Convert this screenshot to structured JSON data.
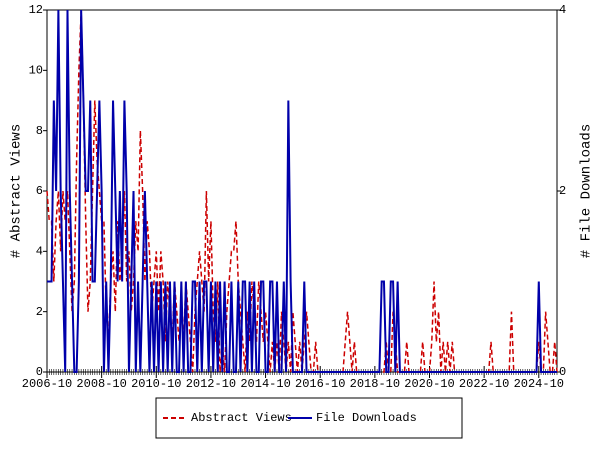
{
  "chart_data": {
    "type": "line",
    "x": [
      "2006-10",
      "2006-11",
      "2006-12",
      "2007-01",
      "2007-02",
      "2007-03",
      "2007-04",
      "2007-05",
      "2007-06",
      "2007-07",
      "2007-08",
      "2007-09",
      "2007-10",
      "2007-11",
      "2007-12",
      "2008-01",
      "2008-02",
      "2008-03",
      "2008-04",
      "2008-05",
      "2008-06",
      "2008-07",
      "2008-08",
      "2008-09",
      "2008-10",
      "2008-11",
      "2008-12",
      "2009-01",
      "2009-02",
      "2009-03",
      "2009-04",
      "2009-05",
      "2009-06",
      "2009-07",
      "2009-08",
      "2009-09",
      "2009-10",
      "2009-11",
      "2009-12",
      "2010-01",
      "2010-02",
      "2010-03",
      "2010-04",
      "2010-05",
      "2010-06",
      "2010-07",
      "2010-08",
      "2010-09",
      "2010-10",
      "2010-11",
      "2010-12",
      "2011-01",
      "2011-02",
      "2011-03",
      "2011-04",
      "2011-05",
      "2011-06",
      "2011-07",
      "2011-08",
      "2011-09",
      "2011-10",
      "2011-11",
      "2011-12",
      "2012-01",
      "2012-02",
      "2012-03",
      "2012-04",
      "2012-05",
      "2012-06",
      "2012-07",
      "2012-08",
      "2012-09",
      "2012-10",
      "2012-11",
      "2012-12",
      "2013-01",
      "2013-02",
      "2013-03",
      "2013-04",
      "2013-05",
      "2013-06",
      "2013-07",
      "2013-08",
      "2013-09",
      "2013-10",
      "2013-11",
      "2013-12",
      "2014-01",
      "2014-02",
      "2014-03",
      "2014-04",
      "2014-05",
      "2014-06",
      "2014-07",
      "2014-08",
      "2014-09",
      "2014-10",
      "2014-11",
      "2014-12",
      "2015-01",
      "2015-02",
      "2015-03",
      "2015-04",
      "2015-05",
      "2015-06",
      "2015-07",
      "2015-08",
      "2015-09",
      "2015-10",
      "2015-11",
      "2015-12",
      "2016-01",
      "2016-02",
      "2016-03",
      "2016-04",
      "2016-05",
      "2016-06",
      "2016-07",
      "2016-08",
      "2016-09",
      "2016-10",
      "2016-11",
      "2016-12",
      "2017-01",
      "2017-02",
      "2017-03",
      "2017-04",
      "2017-05",
      "2017-06",
      "2017-07",
      "2017-08",
      "2017-09",
      "2017-10",
      "2017-11",
      "2017-12",
      "2018-01",
      "2018-02",
      "2018-03",
      "2018-04",
      "2018-05",
      "2018-06",
      "2018-07",
      "2018-08",
      "2018-09",
      "2018-10",
      "2018-11",
      "2018-12",
      "2019-01",
      "2019-02",
      "2019-03",
      "2019-04",
      "2019-05",
      "2019-06",
      "2019-07",
      "2019-08",
      "2019-09",
      "2019-10",
      "2019-11",
      "2019-12",
      "2020-01",
      "2020-02",
      "2020-03",
      "2020-04",
      "2020-05",
      "2020-06",
      "2020-07",
      "2020-08",
      "2020-09",
      "2020-10",
      "2020-11",
      "2020-12",
      "2021-01",
      "2021-02",
      "2021-03",
      "2021-04",
      "2021-05",
      "2021-06",
      "2021-07",
      "2021-08",
      "2021-09",
      "2021-10",
      "2021-11",
      "2021-12",
      "2022-01",
      "2022-02",
      "2022-03",
      "2022-04",
      "2022-05",
      "2022-06",
      "2022-07",
      "2022-08",
      "2022-09",
      "2022-10",
      "2022-11",
      "2022-12",
      "2023-01",
      "2023-02",
      "2023-03",
      "2023-04",
      "2023-05",
      "2023-06",
      "2023-07",
      "2023-08",
      "2023-09",
      "2023-10",
      "2023-11",
      "2023-12",
      "2024-01",
      "2024-02",
      "2024-03",
      "2024-04",
      "2024-05",
      "2024-06",
      "2024-07",
      "2024-08",
      "2024-09",
      "2024-10",
      "2024-11",
      "2024-12",
      "2025-01",
      "2025-02",
      "2025-03",
      "2025-04",
      "2025-05",
      "2025-06"
    ],
    "xticks": [
      "2006-10",
      "2008-10",
      "2010-10",
      "2012-10",
      "2014-10",
      "2016-10",
      "2018-10",
      "2020-10",
      "2022-10",
      "2024-10"
    ],
    "ylabel": "# Abstract Views",
    "y2label": "# File Downloads",
    "ylim": [
      0,
      12
    ],
    "yticks": [
      0,
      2,
      4,
      6,
      8,
      10,
      12
    ],
    "y2lim": [
      0,
      4
    ],
    "y2ticks": [
      0,
      2,
      4
    ],
    "series": [
      {
        "name": "Abstract Views",
        "color": "#cc0000",
        "dash": true,
        "values": [
          6,
          5,
          5,
          3,
          5,
          6,
          4,
          6,
          5,
          6,
          4,
          2,
          3,
          7,
          10,
          12,
          9,
          5,
          2,
          3,
          6,
          9,
          7,
          6,
          5,
          5,
          2,
          1,
          3,
          4,
          2,
          5,
          3,
          4,
          6,
          3,
          4,
          2,
          3,
          5,
          4,
          8,
          6,
          3,
          5,
          4,
          2,
          3,
          4,
          2,
          4,
          3,
          1,
          3,
          2,
          1,
          3,
          2,
          1,
          2,
          1,
          3,
          2,
          1,
          0,
          2,
          3,
          4,
          3,
          2,
          6,
          3,
          5,
          2,
          1,
          3,
          0,
          1,
          0,
          2,
          3,
          4,
          4,
          5,
          3,
          2,
          1,
          0,
          2,
          1,
          3,
          2,
          1,
          3,
          2,
          1,
          2,
          1,
          0,
          1,
          0,
          1,
          0,
          2,
          1,
          0,
          1,
          0,
          2,
          1,
          0,
          1,
          0,
          1,
          2,
          1,
          0,
          0,
          1,
          0,
          0,
          0,
          0,
          0,
          0,
          0,
          0,
          0,
          0,
          0,
          0,
          1,
          2,
          1,
          0,
          1,
          0,
          0,
          0,
          0,
          0,
          0,
          0,
          0,
          0,
          0,
          0,
          0,
          0,
          1,
          0,
          0,
          2,
          1,
          0,
          0,
          0,
          0,
          1,
          0,
          0,
          0,
          0,
          0,
          0,
          1,
          0,
          0,
          0,
          1,
          3,
          1,
          2,
          0,
          1,
          0,
          1,
          0,
          1,
          0,
          0,
          0,
          0,
          0,
          0,
          0,
          0,
          0,
          0,
          0,
          0,
          0,
          0,
          0,
          0,
          1,
          0,
          0,
          0,
          0,
          0,
          0,
          0,
          0,
          2,
          0,
          0,
          0,
          0,
          0,
          0,
          0,
          0,
          0,
          0,
          0,
          1,
          0,
          0,
          2,
          1,
          0,
          0,
          1,
          0
        ]
      },
      {
        "name": "File Downloads",
        "color": "#0000aa",
        "axis": "y2",
        "values": [
          1,
          1,
          1,
          3,
          2,
          4,
          2,
          1,
          0,
          4,
          2,
          1,
          0,
          0,
          1,
          4,
          3,
          2,
          2,
          3,
          1,
          1,
          2,
          3,
          2,
          0,
          1,
          0,
          1,
          3,
          2,
          1,
          2,
          1,
          3,
          2,
          0,
          1,
          2,
          0,
          1,
          0,
          1,
          2,
          1,
          0,
          1,
          0,
          1,
          0,
          1,
          0,
          1,
          0,
          1,
          0,
          1,
          0,
          0,
          1,
          0,
          1,
          0,
          0,
          1,
          1,
          0,
          1,
          0,
          1,
          1,
          0,
          1,
          0,
          1,
          0,
          1,
          0,
          1,
          0,
          0,
          1,
          0,
          0,
          1,
          0,
          1,
          1,
          0,
          1,
          0,
          1,
          0,
          0,
          1,
          1,
          0,
          0,
          1,
          1,
          0,
          1,
          0,
          0,
          1,
          0,
          3,
          1,
          0,
          0,
          0,
          0,
          0,
          1,
          0,
          0,
          0,
          0,
          0,
          0,
          0,
          0,
          0,
          0,
          0,
          0,
          0,
          0,
          0,
          0,
          0,
          0,
          0,
          0,
          0,
          0,
          0,
          0,
          0,
          0,
          0,
          0,
          0,
          0,
          0,
          0,
          0,
          1,
          1,
          0,
          0,
          1,
          1,
          0,
          1,
          0,
          0,
          0,
          0,
          0,
          0,
          0,
          0,
          0,
          0,
          0,
          0,
          0,
          0,
          0,
          0,
          0,
          0,
          0,
          0,
          0,
          0,
          0,
          0,
          0,
          0,
          0,
          0,
          0,
          0,
          0,
          0,
          0,
          0,
          0,
          0,
          0,
          0,
          0,
          0,
          0,
          0,
          0,
          0,
          0,
          0,
          0,
          0,
          0,
          0,
          0,
          0,
          0,
          0,
          0,
          0,
          0,
          0,
          0,
          0,
          0,
          1,
          0,
          0,
          0,
          0,
          0,
          0,
          0,
          0
        ]
      }
    ],
    "legend": "bottom"
  }
}
